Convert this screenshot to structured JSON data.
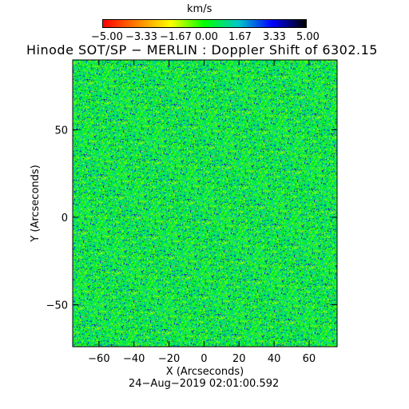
{
  "colorbar": {
    "unit": "km/s",
    "tick_labels": [
      "−5.00",
      "−3.33",
      "−1.67",
      "0.00",
      "1.67",
      "3.33",
      "5.00"
    ],
    "colors": [
      "#ff0000",
      "#ff8000",
      "#ffff00",
      "#00ff00",
      "#00c8c8",
      "#0000ff",
      "#000000"
    ]
  },
  "plot": {
    "title": "Hinode SOT/SP − MERLIN : Doppler Shift of 6302.15",
    "date": "24−Aug−2019 02:01:00.592"
  },
  "chart_data": {
    "type": "heatmap",
    "title": "Hinode SOT/SP − MERLIN : Doppler Shift of 6302.15",
    "xlabel": "X (Arcseconds)",
    "ylabel": "Y (Arcseconds)",
    "xlim": [
      -75,
      76
    ],
    "ylim": [
      -74,
      90
    ],
    "x_ticks": [
      "−60",
      "−40",
      "−20",
      "0",
      "20",
      "40",
      "60"
    ],
    "y_ticks": [
      "−50",
      "0",
      "50"
    ],
    "x_tick_values": [
      -60,
      -40,
      -20,
      0,
      20,
      40,
      60
    ],
    "y_tick_values": [
      -50,
      0,
      50
    ],
    "colorbar_range": [
      -5.0,
      5.0
    ],
    "colorbar_unit": "km/s",
    "dominant_value_km_s": 0.5
  }
}
